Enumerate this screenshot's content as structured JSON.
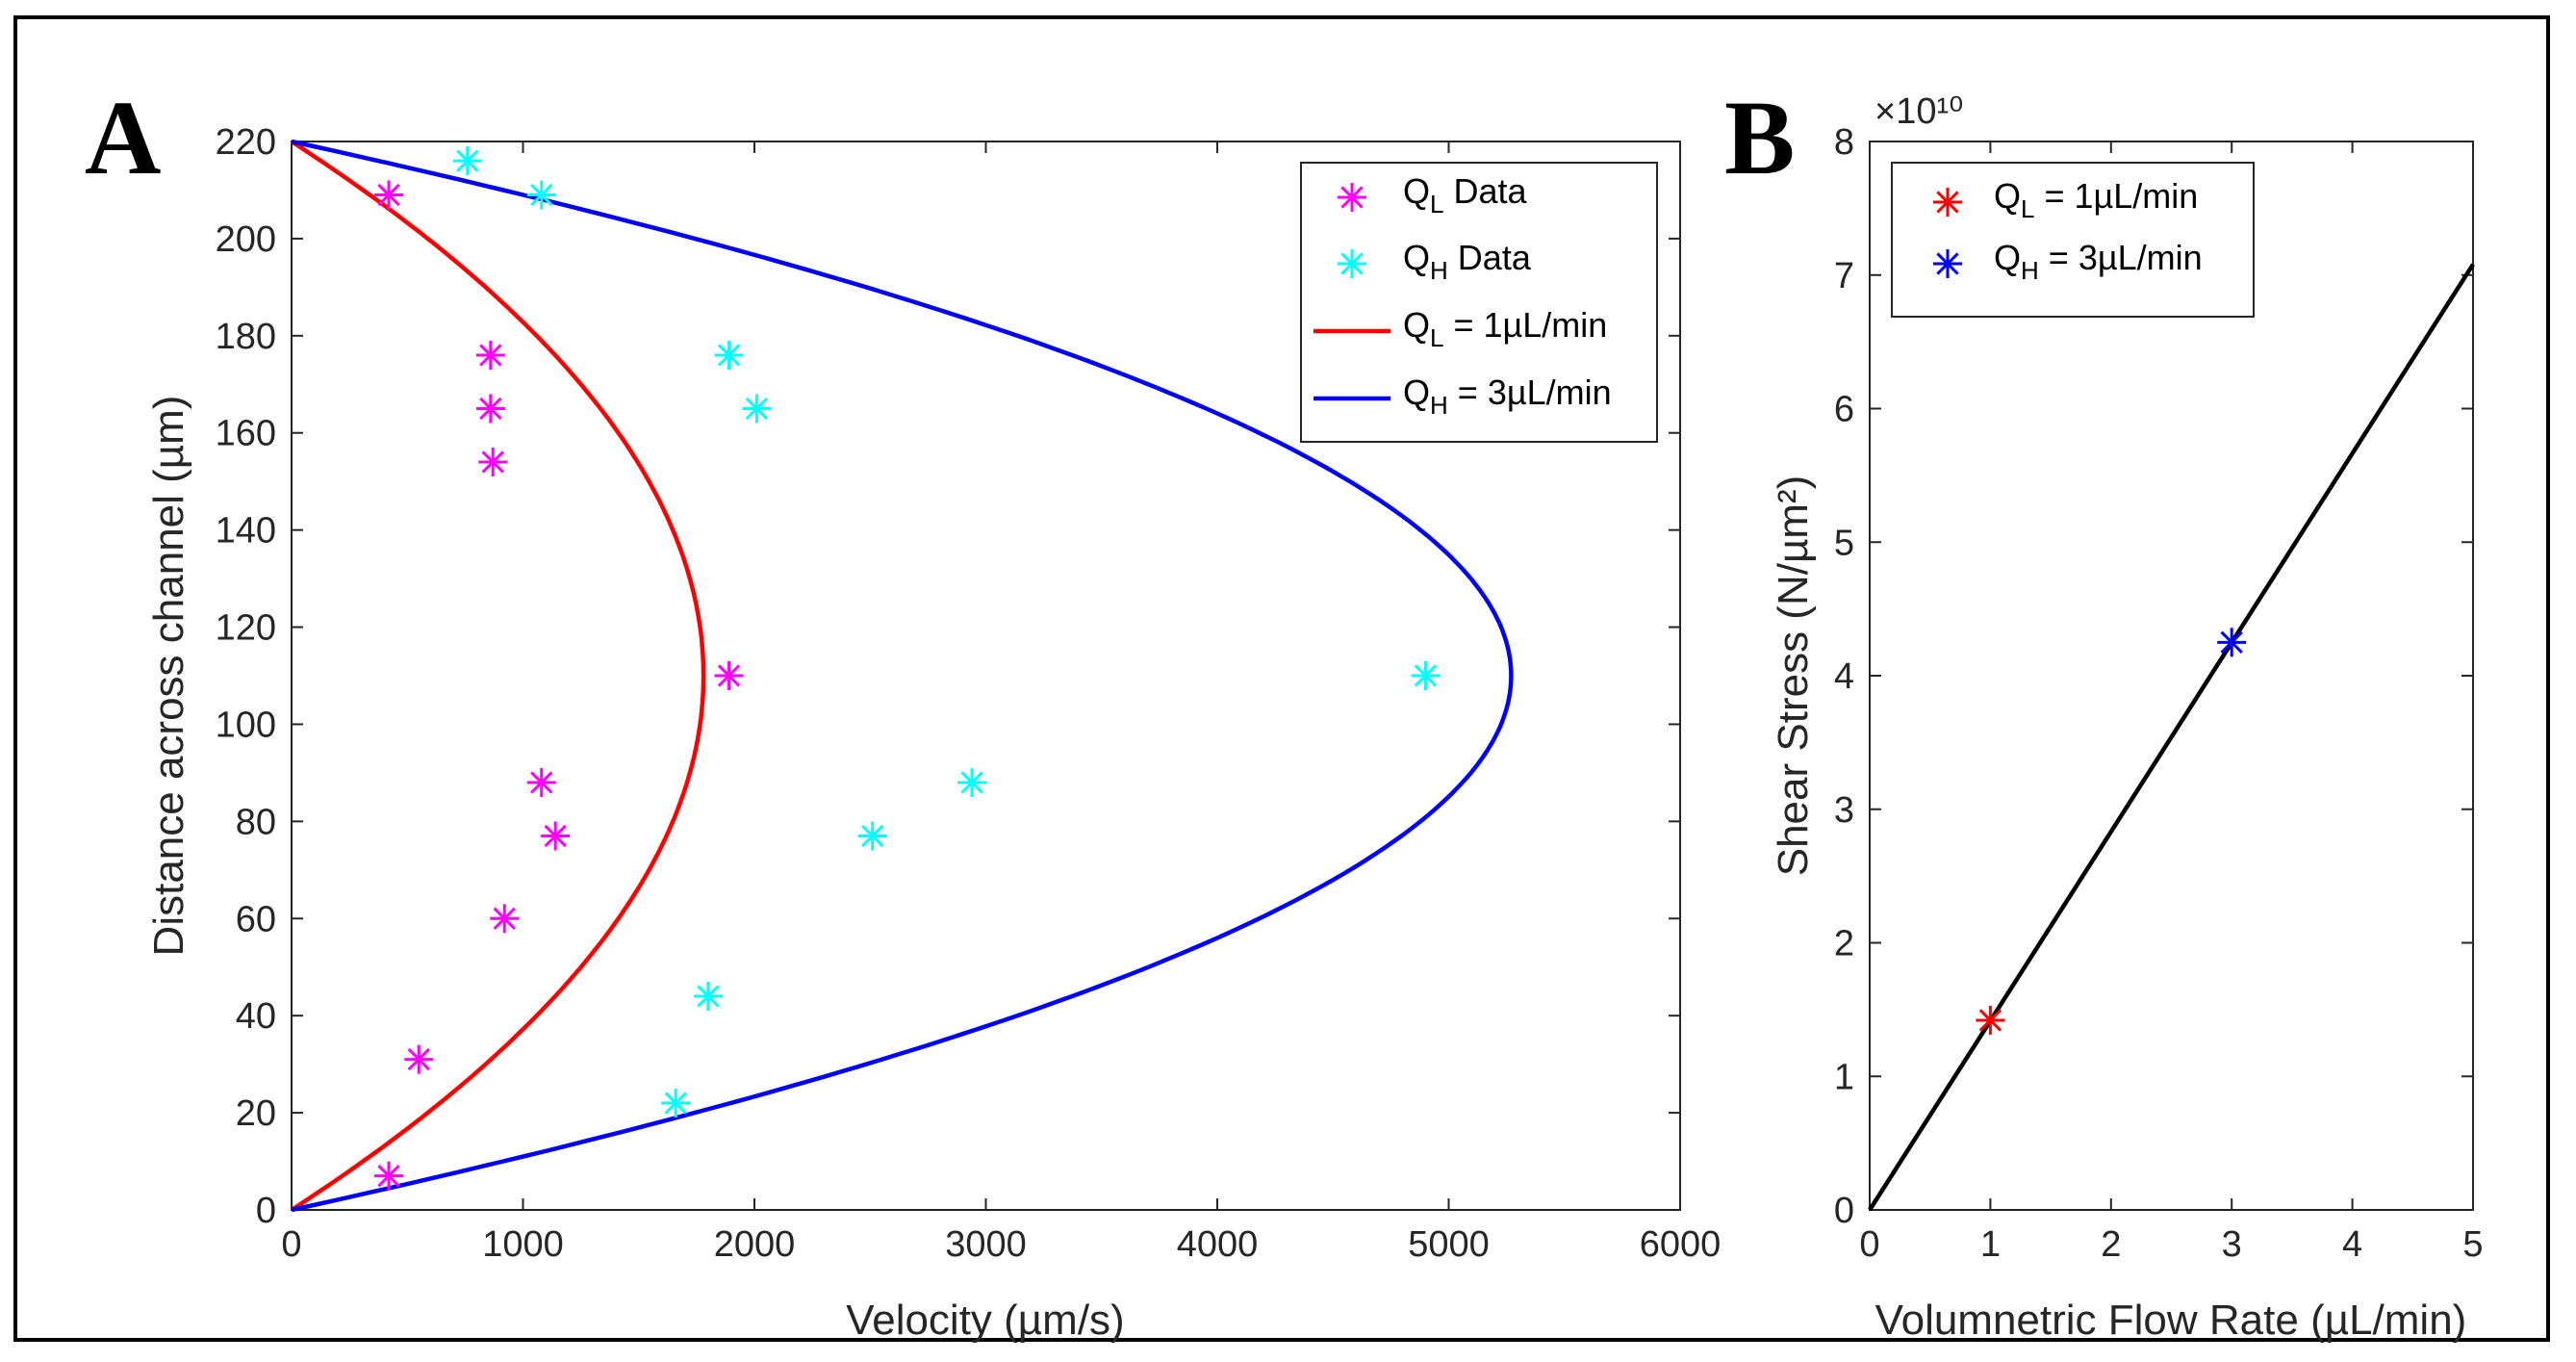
{
  "figure": {
    "panels": [
      "A",
      "B"
    ]
  },
  "chart_data": [
    {
      "panel": "A",
      "type": "line",
      "title": "",
      "xlabel": "Velocity (µm/s)",
      "ylabel": "Distance across channel (µm)",
      "xlim": [
        0,
        6000
      ],
      "ylim": [
        0,
        220
      ],
      "xticks": [
        0,
        1000,
        2000,
        3000,
        4000,
        5000,
        6000
      ],
      "yticks": [
        0,
        20,
        40,
        60,
        80,
        100,
        120,
        140,
        160,
        180,
        200,
        220
      ],
      "grid": false,
      "legend_position": "top-right",
      "series": [
        {
          "name": "QL Data",
          "legend_main": "Q",
          "legend_sub": "L",
          "legend_rest": " Data",
          "kind": "scatter",
          "marker": "asterisk",
          "color": "#ff00ff",
          "x": [
            420,
            420,
            550,
            920,
            1140,
            1080,
            1890,
            870,
            860,
            860
          ],
          "y": [
            7,
            209,
            31,
            60,
            77,
            88,
            110,
            154,
            165,
            176
          ]
        },
        {
          "name": "QH Data",
          "legend_main": "Q",
          "legend_sub": "H",
          "legend_rest": " Data",
          "kind": "scatter",
          "marker": "asterisk",
          "color": "#00ffff",
          "x": [
            1660,
            1800,
            2510,
            2940,
            4900,
            1890,
            2010,
            760,
            1080
          ],
          "y": [
            22,
            44,
            77,
            88,
            110,
            176,
            165,
            216,
            209
          ]
        },
        {
          "name": "QL = 1µL/min",
          "legend_main": "Q",
          "legend_sub": "L",
          "legend_rest": " = 1µL/min",
          "kind": "line",
          "profile": "parabolic",
          "vmax": 1780,
          "color": "#ff0000"
        },
        {
          "name": "QH = 3µL/min",
          "legend_main": "Q",
          "legend_sub": "H",
          "legend_rest": " = 3µL/min",
          "kind": "line",
          "profile": "parabolic",
          "vmax": 5270,
          "color": "#0000ff"
        }
      ]
    },
    {
      "panel": "B",
      "type": "line",
      "title": "",
      "xlabel": "Volumnetric Flow Rate (µL/min)",
      "ylabel": "Shear Stress (N/µm²)",
      "exponent_label": "×10¹⁰",
      "xlim": [
        0,
        5
      ],
      "ylim": [
        0,
        8
      ],
      "xticks": [
        0,
        1,
        2,
        3,
        4,
        5
      ],
      "yticks": [
        0,
        1,
        2,
        3,
        4,
        5,
        6,
        7,
        8
      ],
      "grid": false,
      "legend_position": "top-left",
      "series": [
        {
          "name": "fit",
          "kind": "line",
          "color": "#000000",
          "x": [
            0,
            5
          ],
          "y": [
            0,
            7.08
          ]
        },
        {
          "name": "QL = 1µL/min",
          "legend_main": "Q",
          "legend_sub": "L",
          "legend_rest": " = 1µL/min",
          "kind": "scatter",
          "marker": "asterisk",
          "color": "#ff0000",
          "x": [
            1
          ],
          "y": [
            1.42
          ]
        },
        {
          "name": "QH = 3µL/min",
          "legend_main": "Q",
          "legend_sub": "H",
          "legend_rest": " = 3µL/min",
          "kind": "scatter",
          "marker": "asterisk",
          "color": "#0000ff",
          "x": [
            3
          ],
          "y": [
            4.25
          ]
        }
      ]
    }
  ]
}
